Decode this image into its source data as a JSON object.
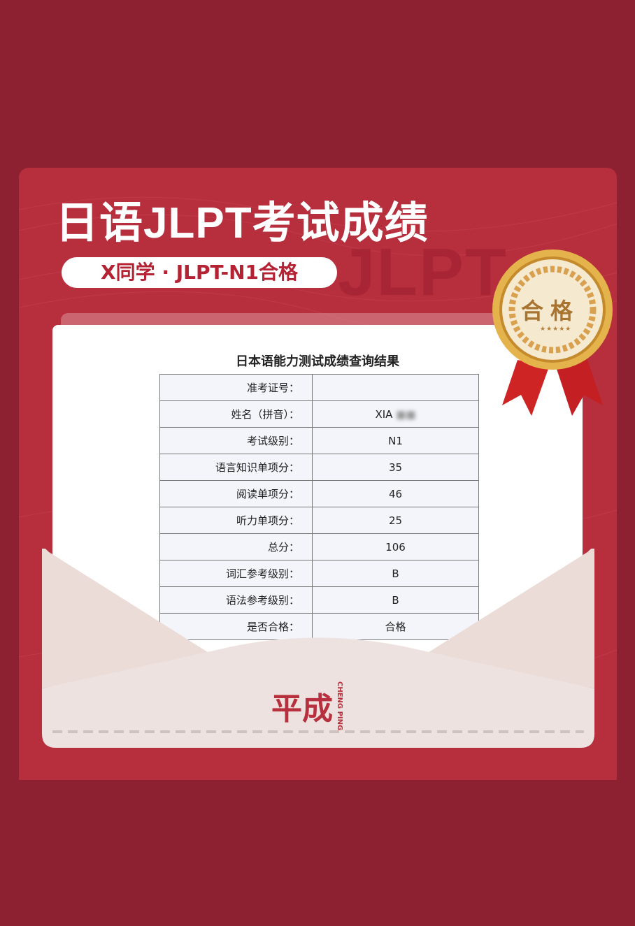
{
  "header": {
    "title": "日语JLPT考试成绩",
    "subtitle": "X同学 · JLPT-N1合格",
    "background_text": "JLPT"
  },
  "badge": {
    "label": "合格",
    "stars": "★★★★★"
  },
  "result": {
    "title": "日本语能力测试成绩查询结果",
    "rows": [
      {
        "label": "准考证号：",
        "value": ""
      },
      {
        "label": "姓名（拼音）：",
        "value": "XIA"
      },
      {
        "label": "考试级别：",
        "value": "N1"
      },
      {
        "label": "语言知识单项分：",
        "value": "35"
      },
      {
        "label": "阅读单项分：",
        "value": "46"
      },
      {
        "label": "听力单项分：",
        "value": "25"
      },
      {
        "label": "总分：",
        "value": "106"
      },
      {
        "label": "词汇参考级别：",
        "value": "B"
      },
      {
        "label": "语法参考级别：",
        "value": "B"
      },
      {
        "label": "是否合格：",
        "value": "合格"
      }
    ]
  },
  "brand": {
    "name_cn": "平成",
    "name_en": "CHENG PING"
  },
  "colors": {
    "background": "#8e2131",
    "card": "#b72e3d",
    "accent": "#b42233",
    "gold": "#d9a648"
  }
}
